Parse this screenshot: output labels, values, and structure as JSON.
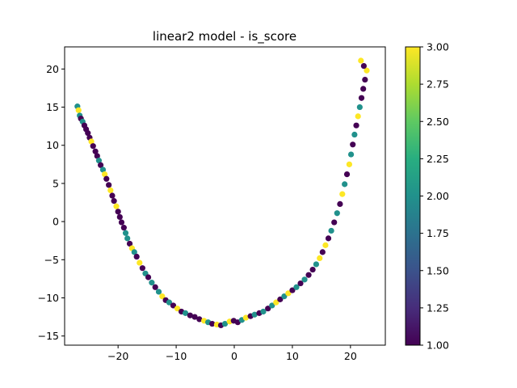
{
  "chart_data": {
    "type": "scatter",
    "title": "linear2 model - is_score",
    "xlabel": "",
    "ylabel": "",
    "xlim": [
      -29.2,
      26.0
    ],
    "ylim": [
      -16.2,
      22.9
    ],
    "xticks": [
      -20,
      -10,
      0,
      10,
      20
    ],
    "yticks": [
      -15,
      -10,
      -5,
      0,
      5,
      10,
      15,
      20
    ],
    "grid": false,
    "colorbar": {
      "colormap": "viridis",
      "min": 1.0,
      "max": 3.0,
      "ticks": [
        "1.00",
        "1.25",
        "1.50",
        "1.75",
        "2.00",
        "2.25",
        "2.50",
        "2.75",
        "3.00"
      ]
    },
    "categories_by_color": {
      "1": "#440154",
      "2": "#21918c",
      "3": "#fde725"
    },
    "points": [
      {
        "x": -27.0,
        "y": 15.1,
        "c": 2
      },
      {
        "x": -26.8,
        "y": 14.6,
        "c": 3
      },
      {
        "x": -26.6,
        "y": 13.9,
        "c": 2
      },
      {
        "x": -26.4,
        "y": 13.5,
        "c": 1
      },
      {
        "x": -26.1,
        "y": 13.1,
        "c": 2
      },
      {
        "x": -25.8,
        "y": 12.6,
        "c": 1
      },
      {
        "x": -25.5,
        "y": 12.1,
        "c": 1
      },
      {
        "x": -25.2,
        "y": 11.6,
        "c": 1
      },
      {
        "x": -24.9,
        "y": 11.0,
        "c": 1
      },
      {
        "x": -24.6,
        "y": 10.5,
        "c": 3
      },
      {
        "x": -24.3,
        "y": 9.9,
        "c": 1
      },
      {
        "x": -23.9,
        "y": 9.2,
        "c": 1
      },
      {
        "x": -23.6,
        "y": 8.6,
        "c": 1
      },
      {
        "x": -23.3,
        "y": 8.0,
        "c": 2
      },
      {
        "x": -23.0,
        "y": 7.4,
        "c": 1
      },
      {
        "x": -22.6,
        "y": 6.8,
        "c": 2
      },
      {
        "x": -22.3,
        "y": 6.2,
        "c": 3
      },
      {
        "x": -22.0,
        "y": 5.6,
        "c": 1
      },
      {
        "x": -21.6,
        "y": 4.8,
        "c": 1
      },
      {
        "x": -21.3,
        "y": 4.1,
        "c": 3
      },
      {
        "x": -21.0,
        "y": 3.4,
        "c": 1
      },
      {
        "x": -20.7,
        "y": 2.7,
        "c": 1
      },
      {
        "x": -20.3,
        "y": 2.0,
        "c": 3
      },
      {
        "x": -20.0,
        "y": 1.3,
        "c": 1
      },
      {
        "x": -19.7,
        "y": 0.6,
        "c": 1
      },
      {
        "x": -19.4,
        "y": -0.1,
        "c": 1
      },
      {
        "x": -19.0,
        "y": -0.8,
        "c": 1
      },
      {
        "x": -18.7,
        "y": -1.5,
        "c": 2
      },
      {
        "x": -18.4,
        "y": -2.2,
        "c": 2
      },
      {
        "x": -18.0,
        "y": -2.9,
        "c": 1
      },
      {
        "x": -17.6,
        "y": -3.5,
        "c": 3
      },
      {
        "x": -17.2,
        "y": -4.0,
        "c": 2
      },
      {
        "x": -16.8,
        "y": -4.6,
        "c": 1
      },
      {
        "x": -16.3,
        "y": -5.4,
        "c": 3
      },
      {
        "x": -15.8,
        "y": -6.1,
        "c": 1
      },
      {
        "x": -15.3,
        "y": -6.8,
        "c": 2
      },
      {
        "x": -14.8,
        "y": -7.3,
        "c": 1
      },
      {
        "x": -14.2,
        "y": -8.0,
        "c": 2
      },
      {
        "x": -13.6,
        "y": -8.6,
        "c": 1
      },
      {
        "x": -13.0,
        "y": -9.2,
        "c": 2
      },
      {
        "x": -12.4,
        "y": -9.8,
        "c": 3
      },
      {
        "x": -11.8,
        "y": -10.3,
        "c": 1
      },
      {
        "x": -11.2,
        "y": -10.6,
        "c": 2
      },
      {
        "x": -10.5,
        "y": -11.0,
        "c": 1
      },
      {
        "x": -9.8,
        "y": -11.4,
        "c": 3
      },
      {
        "x": -9.1,
        "y": -11.8,
        "c": 1
      },
      {
        "x": -8.4,
        "y": -12.0,
        "c": 2
      },
      {
        "x": -7.6,
        "y": -12.3,
        "c": 1
      },
      {
        "x": -6.8,
        "y": -12.5,
        "c": 1
      },
      {
        "x": -6.0,
        "y": -12.8,
        "c": 1
      },
      {
        "x": -5.2,
        "y": -13.0,
        "c": 3
      },
      {
        "x": -4.5,
        "y": -13.2,
        "c": 2
      },
      {
        "x": -3.8,
        "y": -13.4,
        "c": 1
      },
      {
        "x": -3.0,
        "y": -13.5,
        "c": 3
      },
      {
        "x": -2.3,
        "y": -13.6,
        "c": 1
      },
      {
        "x": -1.6,
        "y": -13.4,
        "c": 2
      },
      {
        "x": -0.8,
        "y": -13.1,
        "c": 3
      },
      {
        "x": -0.1,
        "y": -13.0,
        "c": 1
      },
      {
        "x": 0.6,
        "y": -13.2,
        "c": 1
      },
      {
        "x": 1.3,
        "y": -12.9,
        "c": 2
      },
      {
        "x": 2.0,
        "y": -12.6,
        "c": 3
      },
      {
        "x": 2.8,
        "y": -12.4,
        "c": 1
      },
      {
        "x": 3.5,
        "y": -12.2,
        "c": 2
      },
      {
        "x": 4.3,
        "y": -12.0,
        "c": 1
      },
      {
        "x": 5.0,
        "y": -11.8,
        "c": 2
      },
      {
        "x": 5.8,
        "y": -11.4,
        "c": 1
      },
      {
        "x": 6.5,
        "y": -11.0,
        "c": 2
      },
      {
        "x": 7.2,
        "y": -10.6,
        "c": 3
      },
      {
        "x": 7.9,
        "y": -10.2,
        "c": 1
      },
      {
        "x": 8.6,
        "y": -9.8,
        "c": 2
      },
      {
        "x": 9.3,
        "y": -9.4,
        "c": 3
      },
      {
        "x": 10.0,
        "y": -9.0,
        "c": 1
      },
      {
        "x": 10.7,
        "y": -8.6,
        "c": 2
      },
      {
        "x": 11.4,
        "y": -8.1,
        "c": 1
      },
      {
        "x": 12.1,
        "y": -7.6,
        "c": 2
      },
      {
        "x": 12.8,
        "y": -7.0,
        "c": 1
      },
      {
        "x": 13.5,
        "y": -6.3,
        "c": 1
      },
      {
        "x": 14.1,
        "y": -5.6,
        "c": 2
      },
      {
        "x": 14.7,
        "y": -4.8,
        "c": 3
      },
      {
        "x": 15.2,
        "y": -4.0,
        "c": 1
      },
      {
        "x": 15.7,
        "y": -3.1,
        "c": 3
      },
      {
        "x": 16.2,
        "y": -2.2,
        "c": 1
      },
      {
        "x": 16.7,
        "y": -1.2,
        "c": 2
      },
      {
        "x": 17.2,
        "y": -0.1,
        "c": 1
      },
      {
        "x": 17.7,
        "y": 1.1,
        "c": 2
      },
      {
        "x": 18.2,
        "y": 2.3,
        "c": 1
      },
      {
        "x": 18.6,
        "y": 3.6,
        "c": 3
      },
      {
        "x": 19.0,
        "y": 4.9,
        "c": 2
      },
      {
        "x": 19.4,
        "y": 6.2,
        "c": 1
      },
      {
        "x": 19.8,
        "y": 7.5,
        "c": 3
      },
      {
        "x": 20.1,
        "y": 8.8,
        "c": 2
      },
      {
        "x": 20.4,
        "y": 10.1,
        "c": 1
      },
      {
        "x": 20.7,
        "y": 11.4,
        "c": 2
      },
      {
        "x": 21.0,
        "y": 12.6,
        "c": 1
      },
      {
        "x": 21.3,
        "y": 13.8,
        "c": 3
      },
      {
        "x": 21.6,
        "y": 15.0,
        "c": 2
      },
      {
        "x": 21.9,
        "y": 16.2,
        "c": 1
      },
      {
        "x": 22.2,
        "y": 17.4,
        "c": 1
      },
      {
        "x": 22.5,
        "y": 18.6,
        "c": 1
      },
      {
        "x": 22.8,
        "y": 19.8,
        "c": 3
      },
      {
        "x": 21.8,
        "y": 21.1,
        "c": 3
      },
      {
        "x": 22.3,
        "y": 20.4,
        "c": 1
      }
    ]
  }
}
